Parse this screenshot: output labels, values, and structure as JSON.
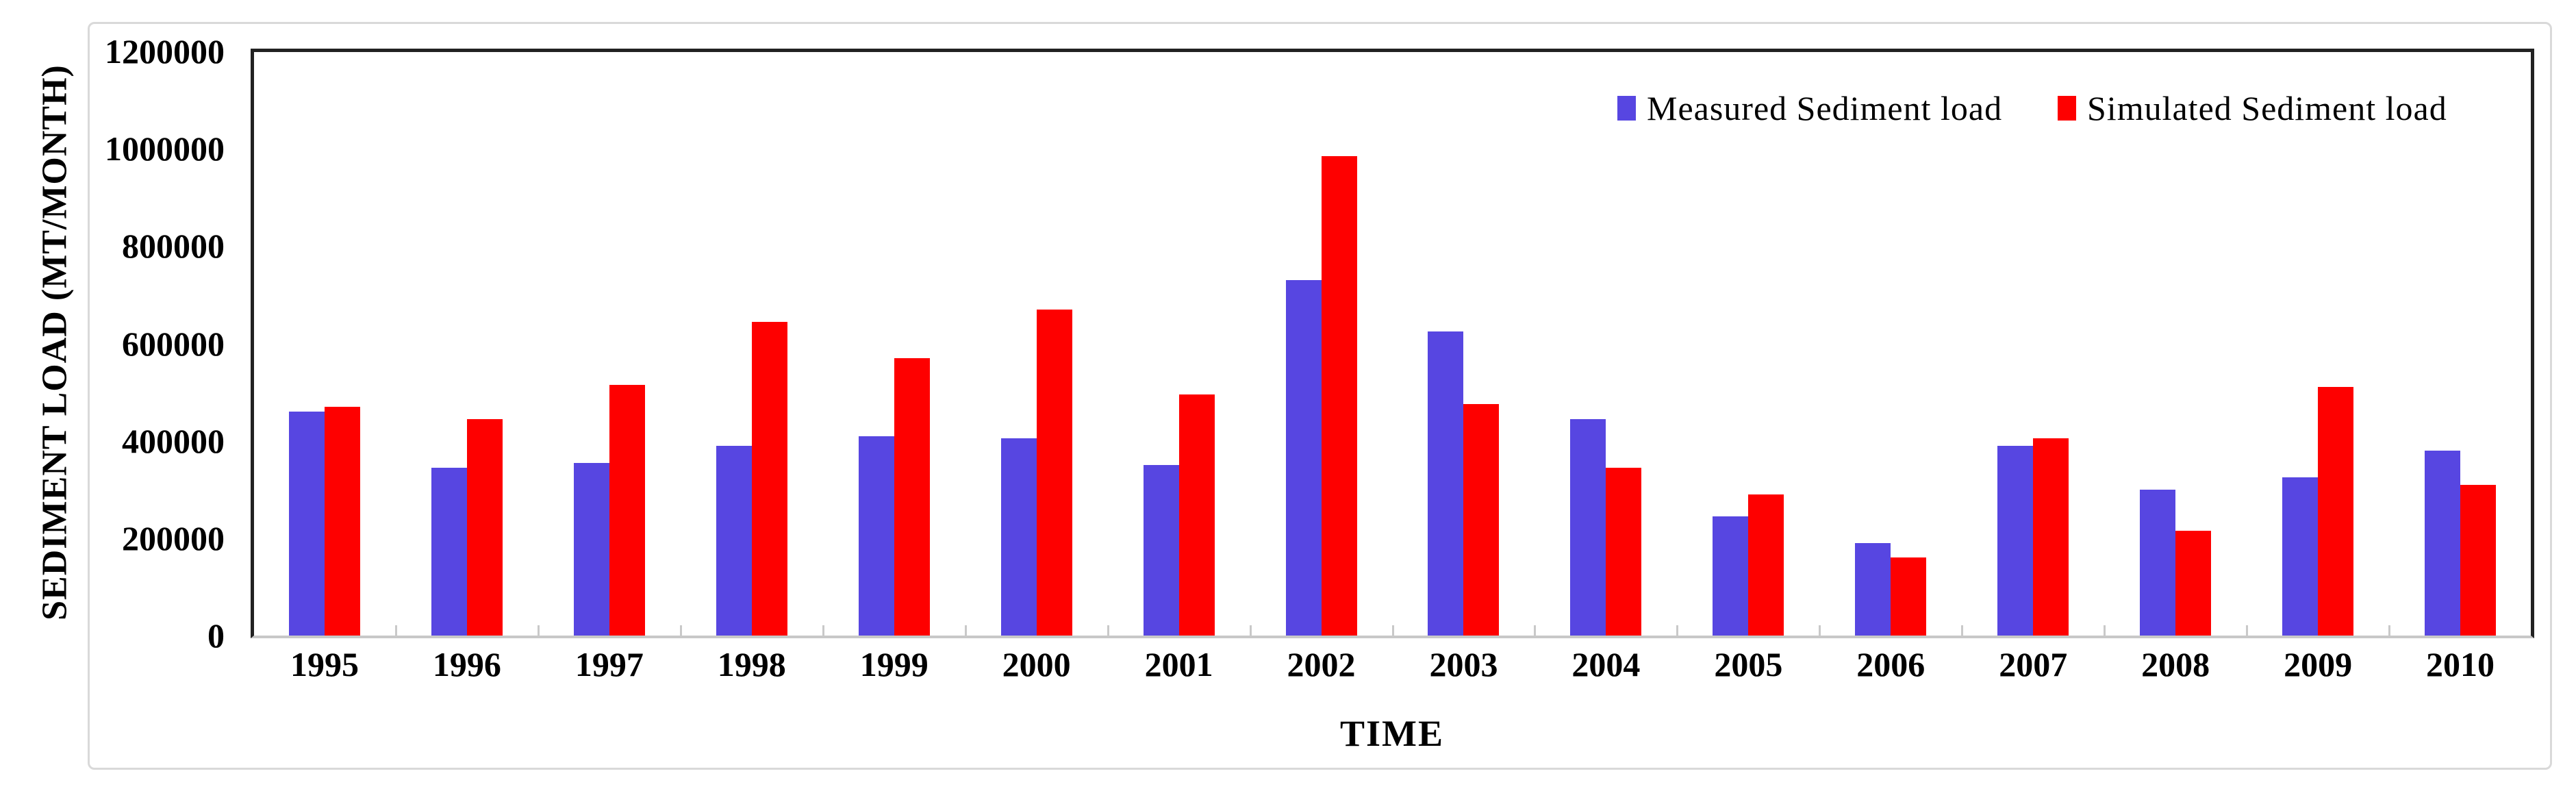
{
  "chart_data": {
    "type": "bar",
    "title": "",
    "categories": [
      "1995",
      "1996",
      "1997",
      "1998",
      "1999",
      "2000",
      "2001",
      "2002",
      "2003",
      "2004",
      "2005",
      "2006",
      "2007",
      "2008",
      "2009",
      "2010"
    ],
    "series": [
      {
        "name": "Measured Sediment load",
        "color": "#5746e1",
        "values": [
          460000,
          345000,
          355000,
          390000,
          410000,
          405000,
          350000,
          730000,
          625000,
          445000,
          245000,
          190000,
          390000,
          300000,
          325000,
          380000
        ]
      },
      {
        "name": "Simulated Sediment load",
        "color": "#fe0000",
        "values": [
          470000,
          445000,
          515000,
          645000,
          570000,
          670000,
          495000,
          985000,
          475000,
          345000,
          290000,
          160000,
          405000,
          215000,
          510000,
          310000
        ]
      }
    ],
    "xlabel": "TIME",
    "ylabel": "SEDIMENT LOAD (MT/MONTH)",
    "ylim": [
      0,
      1200000
    ],
    "ytick_step": 200000,
    "ytick_labels": [
      "0",
      "200000",
      "400000",
      "600000",
      "800000",
      "1000000",
      "1200000"
    ],
    "grid": false,
    "legend_position": "inside-top-right"
  },
  "style": {
    "frame_color": "#222222",
    "baseline_color": "#c8c8c8",
    "tick_color": "#c9c9c9",
    "figure_border_color": "#d9d9d9",
    "background": "#ffffff",
    "text_color": "#000000"
  }
}
